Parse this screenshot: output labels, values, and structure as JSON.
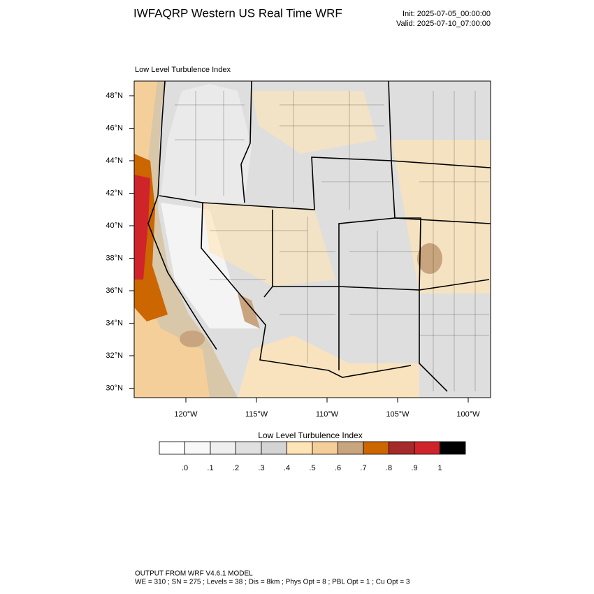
{
  "header": {
    "title": "IWFAQRP Western US Real Time WRF",
    "init": "Init: 2025-07-05_00:00:00",
    "valid": "Valid: 2025-07-10_07:00:00"
  },
  "map": {
    "field_title": "Low Level Turbulence Index",
    "lat_labels": [
      "48°N",
      "46°N",
      "44°N",
      "42°N",
      "40°N",
      "38°N",
      "36°N",
      "34°N",
      "32°N",
      "30°N"
    ],
    "lon_labels": [
      "120°W",
      "115°W",
      "110°W",
      "105°W",
      "100°W"
    ]
  },
  "colorbar": {
    "title": "Low Level Turbulence Index",
    "colors": [
      "#ffffff",
      "#f8f8f8",
      "#efefef",
      "#e0e0e0",
      "#d4d4d4",
      "#ffe4b5",
      "#f5cf9a",
      "#c8a57e",
      "#cc6600",
      "#a52a2a",
      "#d0242b",
      "#000000"
    ],
    "levels": [
      {
        "value": 0,
        "label": ".0"
      },
      {
        "value": 0.1,
        "label": ".1"
      },
      {
        "value": 0.2,
        "label": ".2"
      },
      {
        "value": 0.3,
        "label": ".3"
      },
      {
        "value": 0.4,
        "label": ".4"
      },
      {
        "value": 0.5,
        "label": ".5"
      },
      {
        "value": 0.6,
        "label": ".6"
      },
      {
        "value": 0.7,
        "label": ".7"
      },
      {
        "value": 0.8,
        "label": ".8"
      },
      {
        "value": 0.9,
        "label": ".9"
      },
      1
    ]
  },
  "footer": {
    "line1": "OUTPUT FROM WRF V4.6.1 MODEL",
    "line2": "WE = 310 ; SN = 275 ; Levels = 38 ; Dis = 8km ; Phys Opt = 8 ; PBL Opt = 1 ; Cu Opt = 3"
  }
}
